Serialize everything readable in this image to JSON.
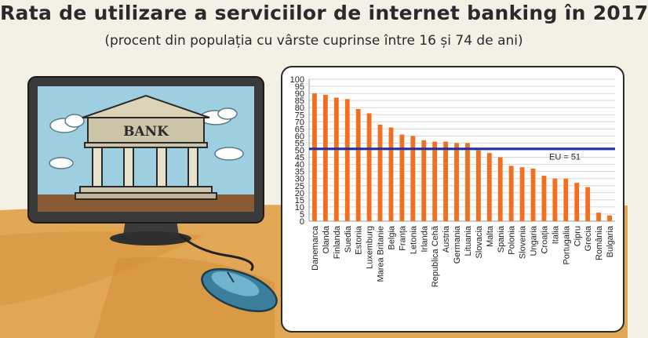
{
  "header": {
    "title": "Rata de utilizare a serviciilor de internet banking în 2017",
    "subtitle": "(procent din populația cu vârste cuprinse între 16 și 74 de ani)"
  },
  "illustration": {
    "sign_text": "BANK",
    "icons": [
      "monitor-icon",
      "bank-building-icon",
      "mouse-icon",
      "cloud-icon"
    ]
  },
  "chart_data": {
    "type": "bar",
    "categories": [
      "Danemarca",
      "Olanda",
      "Finlanda",
      "Suedia",
      "Estonia",
      "Luxemburg",
      "Marea Britanie",
      "Belgia",
      "Franța",
      "Letonia",
      "Irlanda",
      "Republica Cehă",
      "Austria",
      "Germania",
      "Lituania",
      "Slovacia",
      "Malta",
      "Spania",
      "Polonia",
      "Slovenia",
      "Ungaria",
      "Croația",
      "Italia",
      "Portugalia",
      "Cipru",
      "Grecia",
      "România",
      "Bulgaria"
    ],
    "values": [
      90,
      89,
      87,
      86,
      79,
      76,
      68,
      66,
      61,
      60,
      57,
      56,
      56,
      55,
      55,
      50,
      48,
      45,
      39,
      38,
      37,
      32,
      30,
      30,
      27,
      24,
      6,
      4
    ],
    "ylim": [
      0,
      100
    ],
    "yticks": [
      0,
      5,
      10,
      15,
      20,
      25,
      30,
      35,
      40,
      45,
      50,
      55,
      60,
      65,
      70,
      75,
      80,
      85,
      90,
      95,
      100
    ],
    "grid": true,
    "reference_line": {
      "value": 51,
      "label": "EU = 51"
    },
    "colors": {
      "bar": "#f07020",
      "reference_line": "#1f2fa8",
      "grid": "#d6d6d6"
    }
  }
}
